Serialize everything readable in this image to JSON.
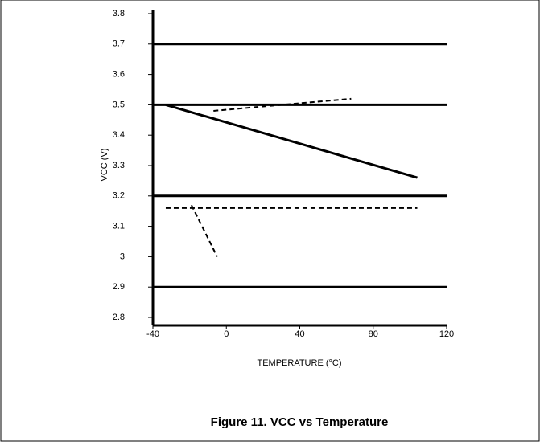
{
  "chart_data": {
    "type": "line",
    "caption": "Figure 11. VCC vs Temperature",
    "x_label": "TEMPERATURE (°C)",
    "y_label": "VCC (V)",
    "xlim": [
      -40,
      120
    ],
    "xticks": [
      -40,
      0,
      40,
      80,
      120
    ],
    "ylim": [
      2.8,
      3.8
    ],
    "yticks": [
      2.8,
      2.9,
      3.0,
      3.1,
      3.2,
      3.3,
      3.4,
      3.5,
      3.6,
      3.7,
      3.8
    ],
    "series": [
      {
        "color": "#000000",
        "dash": false,
        "x": [
          -40,
          120
        ],
        "values": [
          3.7,
          3.7
        ]
      },
      {
        "color": "#000000",
        "dash": false,
        "x": [
          -40,
          120
        ],
        "values": [
          3.5,
          3.5
        ]
      },
      {
        "color": "#000000",
        "dash": false,
        "x": [
          -40,
          120
        ],
        "values": [
          3.2,
          3.2
        ]
      },
      {
        "color": "#000000",
        "dash": false,
        "x": [
          -40,
          120
        ],
        "values": [
          2.9,
          2.9
        ]
      },
      {
        "color": "#000000",
        "dash": false,
        "x": [
          -33,
          104
        ],
        "values": [
          3.5,
          3.26
        ]
      },
      {
        "color": "#000000",
        "dash": true,
        "x": [
          -7,
          68
        ],
        "values": [
          3.48,
          3.52
        ]
      },
      {
        "color": "#000000",
        "dash": true,
        "x": [
          -33,
          104
        ],
        "values": [
          3.16,
          3.16
        ]
      },
      {
        "color": "#000000",
        "dash": true,
        "x": [
          -19,
          -5
        ],
        "values": [
          3.17,
          3.0
        ]
      }
    ]
  }
}
